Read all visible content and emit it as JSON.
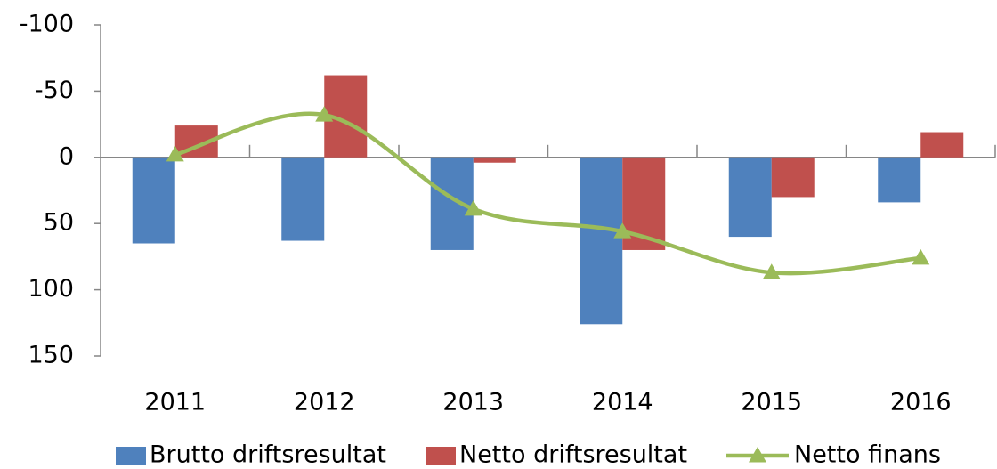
{
  "chart_data": {
    "type": "bar",
    "categories": [
      "2011",
      "2012",
      "2013",
      "2014",
      "2015",
      "2016"
    ],
    "series": [
      {
        "name": "Brutto driftsresultat",
        "color": "#4f81bd",
        "type": "bar",
        "values": [
          65,
          63,
          70,
          126,
          60,
          34
        ]
      },
      {
        "name": "Netto driftsresultat",
        "color": "#c0504d",
        "type": "bar",
        "values": [
          -24,
          -62,
          4,
          70,
          30,
          -19
        ]
      },
      {
        "name": "Netto finans",
        "color": "#9bbb59",
        "type": "line",
        "smooth": true,
        "marker": "triangle",
        "values": [
          -2,
          -32,
          39,
          56,
          87,
          76
        ]
      }
    ],
    "ylim": [
      -100,
      150
    ],
    "y_inverted": true,
    "yticks": [
      -100,
      -50,
      0,
      50,
      100,
      150
    ],
    "grid": false,
    "legend": "bottom"
  }
}
